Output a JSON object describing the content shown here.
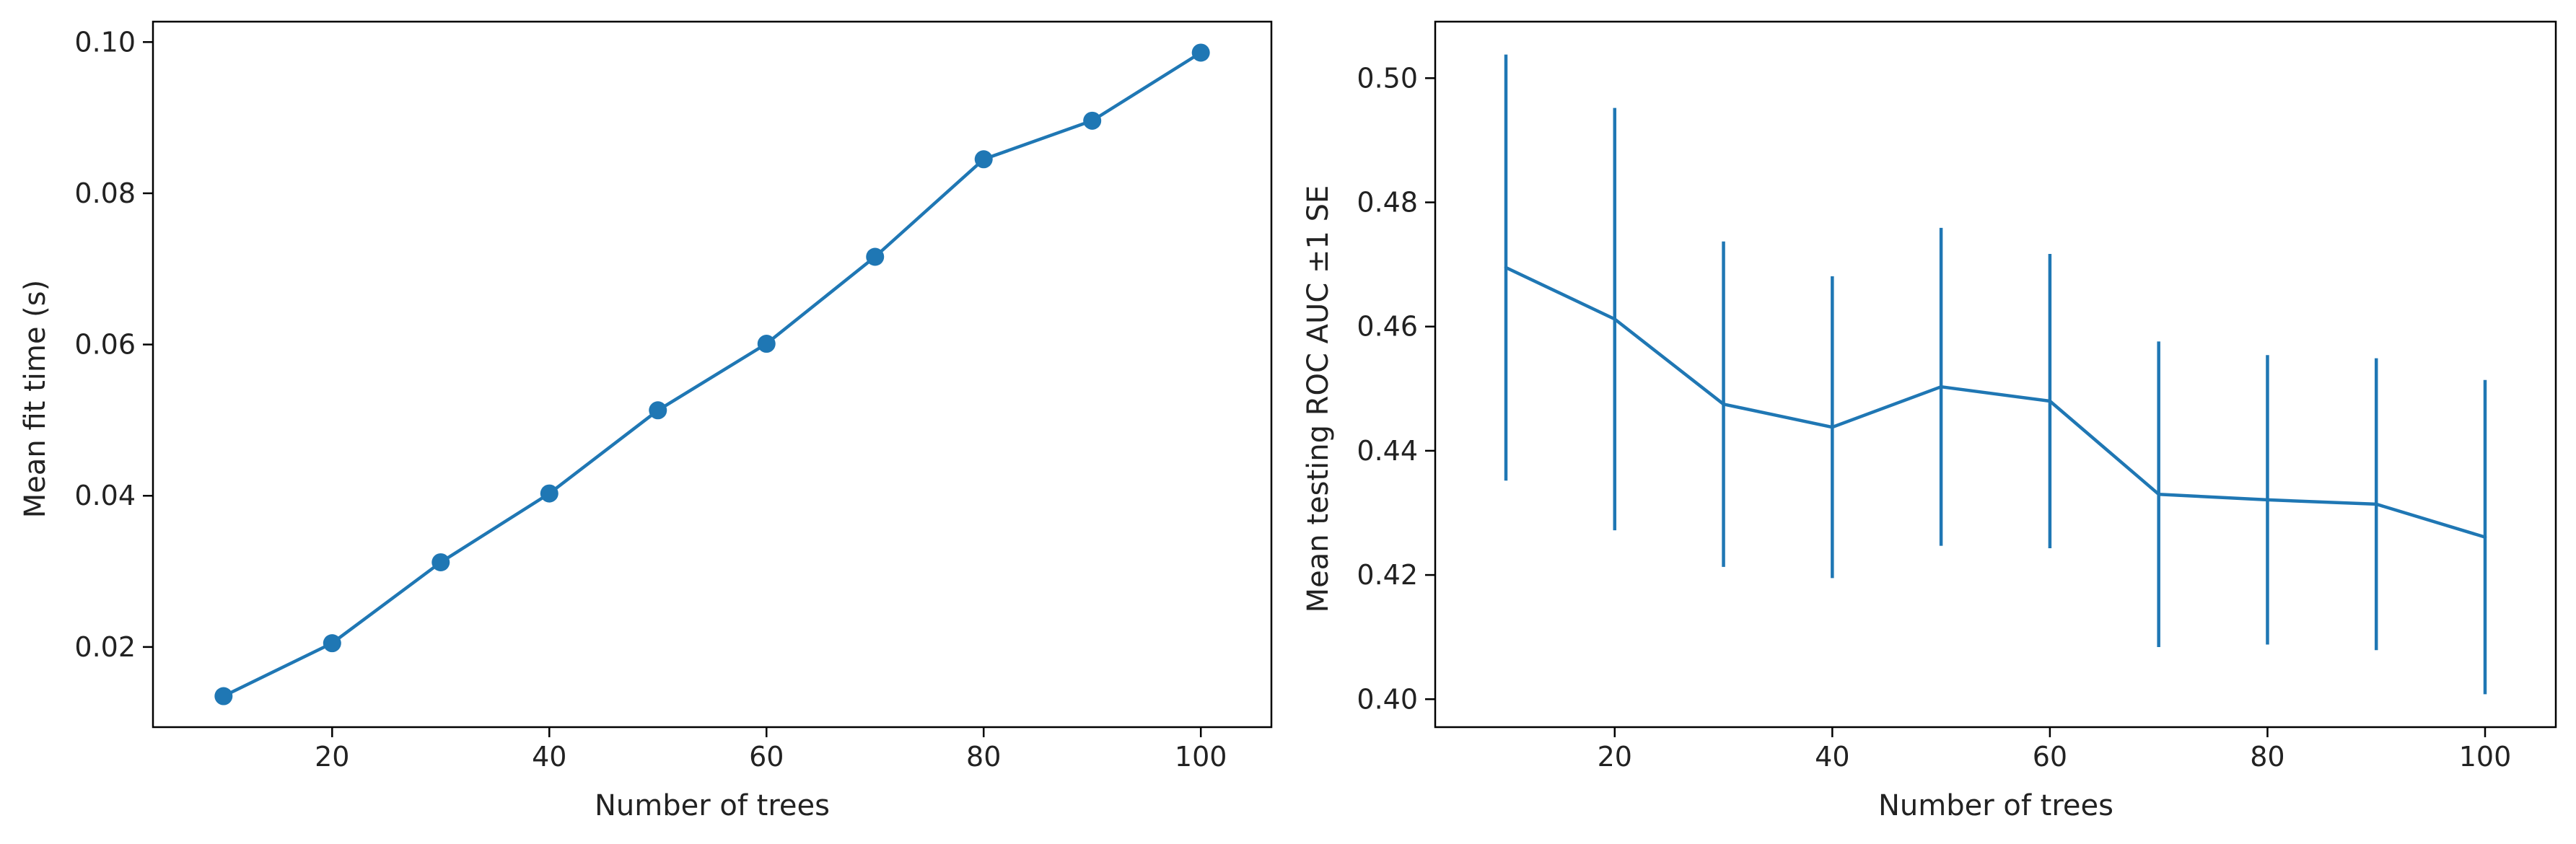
{
  "chart_data": [
    {
      "type": "line",
      "title": "",
      "xlabel": "Number of trees",
      "ylabel": "Mean fit time (s)",
      "x": [
        10,
        20,
        30,
        40,
        50,
        60,
        70,
        80,
        90,
        100
      ],
      "series": [
        {
          "values": [
            0.0135,
            0.0205,
            0.0312,
            0.0403,
            0.0513,
            0.0601,
            0.0716,
            0.0845,
            0.0896,
            0.0986
          ]
        }
      ],
      "xlim": [
        3.5,
        106.5
      ],
      "ylim": [
        0.0094,
        0.1027
      ],
      "xticks": [
        20,
        40,
        60,
        80,
        100
      ],
      "xtick_labels": [
        "20",
        "40",
        "60",
        "80",
        "100"
      ],
      "yticks": [
        0.02,
        0.04,
        0.06,
        0.08,
        0.1
      ],
      "ytick_labels": [
        "0.02",
        "0.04",
        "0.06",
        "0.08",
        "0.10"
      ],
      "markers": true,
      "grid": false,
      "color": "#1f77b4"
    },
    {
      "type": "line",
      "title": "",
      "xlabel": "Number of trees",
      "ylabel": "Mean testing ROC AUC ±1 SE",
      "x": [
        10,
        20,
        30,
        40,
        50,
        60,
        70,
        80,
        90,
        100
      ],
      "series": [
        {
          "values": [
            0.4695,
            0.4612,
            0.4475,
            0.4438,
            0.4503,
            0.448,
            0.433,
            0.4321,
            0.4314,
            0.4261
          ],
          "error": [
            0.0343,
            0.034,
            0.0262,
            0.0243,
            0.0256,
            0.0237,
            0.0246,
            0.0233,
            0.0235,
            0.0253
          ]
        }
      ],
      "xlim": [
        3.5,
        106.5
      ],
      "ylim": [
        0.3955,
        0.5091
      ],
      "xticks": [
        20,
        40,
        60,
        80,
        100
      ],
      "xtick_labels": [
        "20",
        "40",
        "60",
        "80",
        "100"
      ],
      "yticks": [
        0.4,
        0.42,
        0.44,
        0.46,
        0.48,
        0.5
      ],
      "ytick_labels": [
        "0.40",
        "0.42",
        "0.44",
        "0.46",
        "0.48",
        "0.50"
      ],
      "error_bars": true,
      "grid": false,
      "color": "#1f77b4"
    }
  ]
}
